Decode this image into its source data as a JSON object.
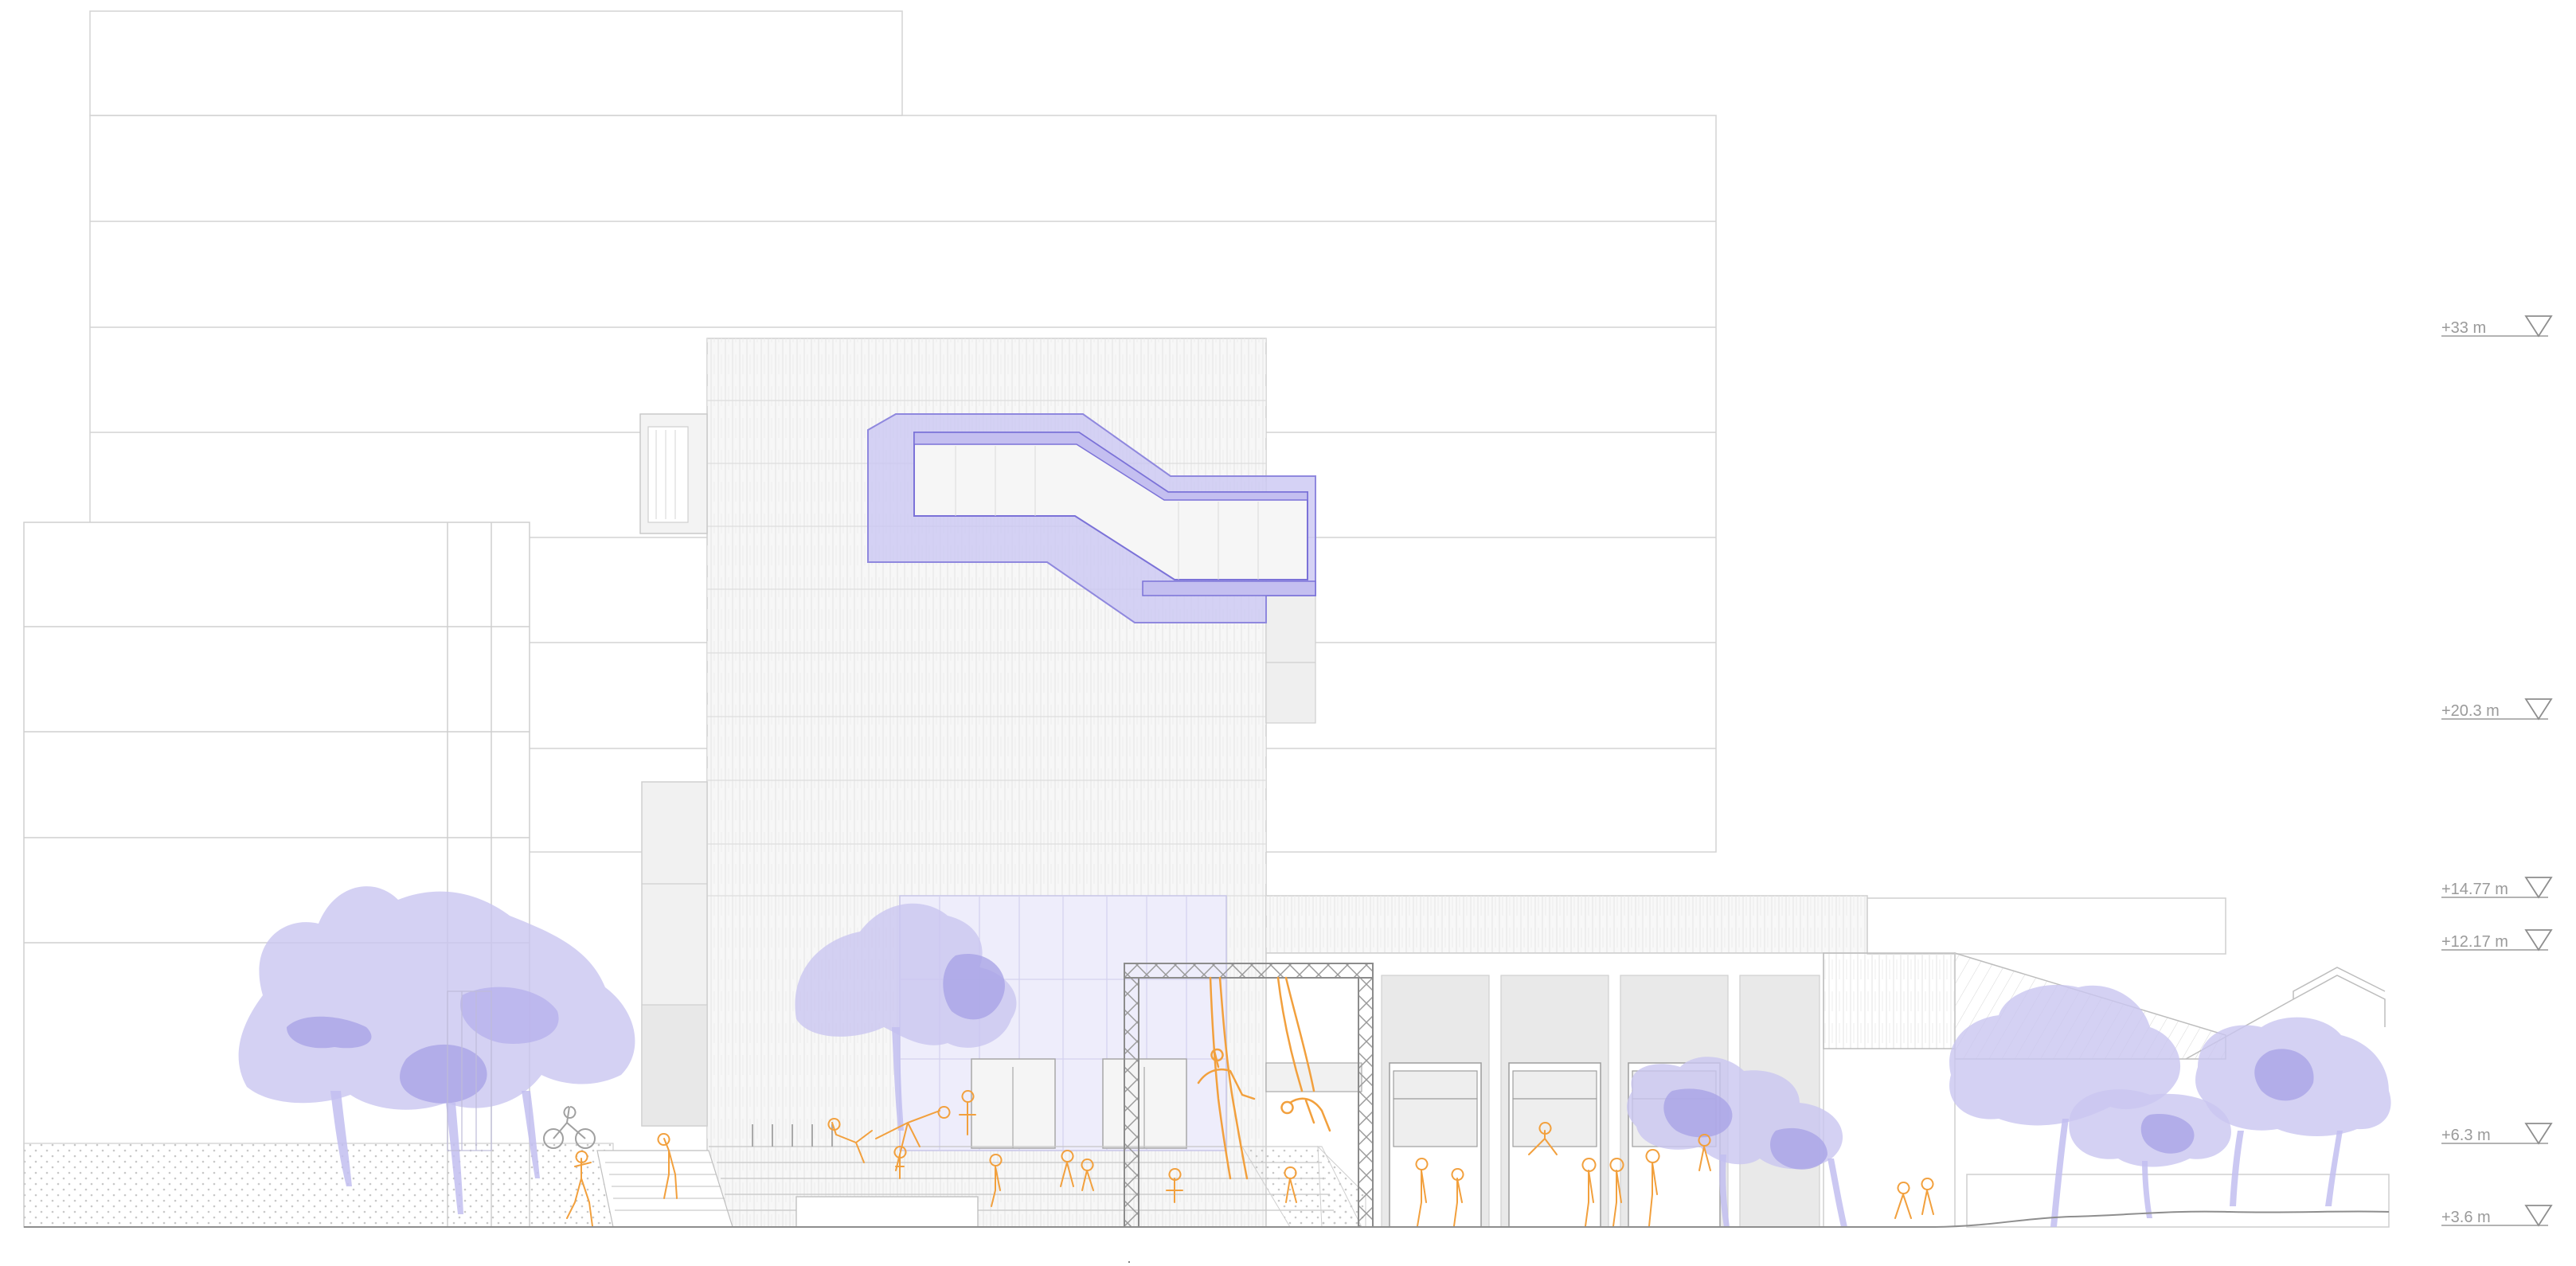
{
  "elevation_levels": [
    {
      "label": "+33 m",
      "value": 33
    },
    {
      "label": "+20.3 m",
      "value": 20.3
    },
    {
      "label": "+14.77 m",
      "value": 14.77
    },
    {
      "label": "+12.17 m",
      "value": 12.17
    },
    {
      "label": "+6.3 m",
      "value": 6.3
    },
    {
      "label": "+3.6 m",
      "value": 3.6
    }
  ],
  "colors": {
    "line": "#cfcfcf",
    "line_dark": "#9a9a9a",
    "facade_fill": "#f4f4f4",
    "panel_fill": "#e9e9e9",
    "tree_fill": "#c9c6f0",
    "tree_dark": "#a9a4e6",
    "violet_band": "#b7b2ee",
    "violet_stroke": "#7b72d8",
    "figure_orange": "#f2a03d",
    "figure_grey": "#8e8e8e",
    "truss": "#8c8c8c"
  }
}
